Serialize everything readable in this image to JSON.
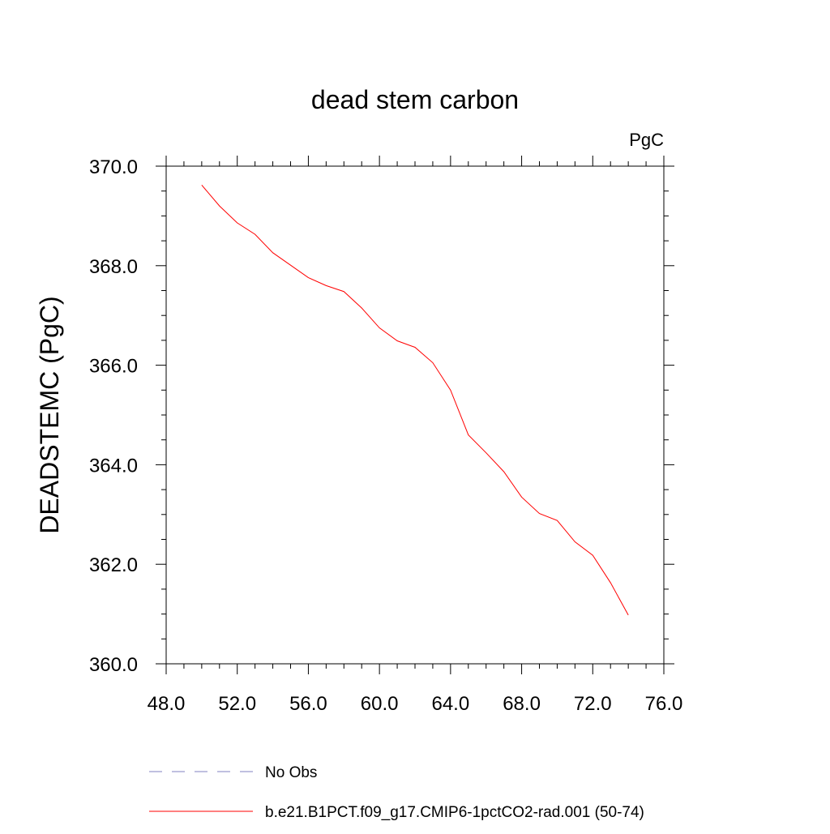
{
  "chart_data": {
    "type": "line",
    "title": "dead stem carbon",
    "units": "PgC",
    "xlabel": "",
    "ylabel": "DEADSTEMC  (PgC)",
    "xlim": [
      48.0,
      76.0
    ],
    "ylim": [
      360.0,
      370.0
    ],
    "x_ticks": [
      "48.0",
      "52.0",
      "56.0",
      "60.0",
      "64.0",
      "68.0",
      "72.0",
      "76.0"
    ],
    "y_ticks": [
      "360.0",
      "362.0",
      "364.0",
      "366.0",
      "368.0",
      "370.0"
    ],
    "grid": false,
    "legend_position": "bottom",
    "series": [
      {
        "name": "No Obs",
        "color": "#8080c0",
        "dash": "dashed",
        "x": [],
        "y": []
      },
      {
        "name": "b.e21.B1PCT.f09_g17.CMIP6-1pctCO2-rad.001 (50-74)",
        "color": "#ff0000",
        "dash": "solid",
        "x": [
          50,
          51,
          52,
          53,
          54,
          55,
          56,
          57,
          58,
          59,
          60,
          61,
          62,
          63,
          64,
          65,
          66,
          67,
          68,
          69,
          70,
          71,
          72,
          73,
          74
        ],
        "y": [
          369.62,
          369.2,
          368.86,
          368.63,
          368.26,
          368.01,
          367.76,
          367.6,
          367.48,
          367.15,
          366.75,
          366.49,
          366.36,
          366.05,
          365.5,
          364.6,
          364.24,
          363.86,
          363.35,
          363.02,
          362.88,
          362.45,
          362.18,
          361.63,
          360.98
        ]
      }
    ]
  }
}
